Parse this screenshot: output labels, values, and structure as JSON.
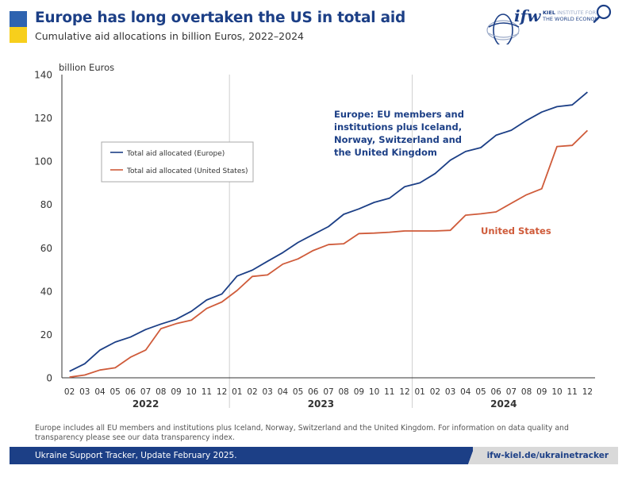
{
  "header": {
    "title": "Europe has long overtaken the US in total aid",
    "subtitle": "Cumulative aid allocations in billion Euros, 2022–2024"
  },
  "logo": {
    "mark": "ifw",
    "line1": "KIEL INSTITUTE FOR",
    "line2": "THE WORLD ECONOMY"
  },
  "search_icon": "search-icon",
  "footnote": "Europe includes all EU members and institutions plus Iceland, Norway, Switzerland and the United Kingdom. For information on data quality and transparency please see our data transparency index.",
  "footer": {
    "left": "Ukraine Support Tracker, Update February 2025.",
    "right": "ifw-kiel.de/ukrainetracker"
  },
  "colors": {
    "europe": "#1c3f86",
    "us": "#cf5b3a",
    "brand_blue": "#1c3f86",
    "flag_blue": "#2e63b0",
    "flag_yellow": "#f7cf1c"
  },
  "chart_data": {
    "type": "line",
    "title": "Europe has long overtaken the US in total aid",
    "subtitle": "Cumulative aid allocations in billion Euros, 2022–2024",
    "ylabel": "billion Euros",
    "ylim": [
      0,
      140
    ],
    "yticks": [
      0,
      20,
      40,
      60,
      80,
      100,
      120,
      140
    ],
    "grid": false,
    "legend_position": "upper-left",
    "x_labels": [
      "02",
      "03",
      "04",
      "05",
      "06",
      "07",
      "08",
      "09",
      "10",
      "11",
      "12",
      "01",
      "02",
      "03",
      "04",
      "05",
      "06",
      "07",
      "08",
      "09",
      "10",
      "11",
      "12",
      "01",
      "02",
      "03",
      "04",
      "05",
      "06",
      "07",
      "08",
      "09",
      "10",
      "11",
      "12"
    ],
    "year_groups": [
      {
        "label": "2022",
        "count": 11
      },
      {
        "label": "2023",
        "count": 12
      },
      {
        "label": "2024",
        "count": 12
      }
    ],
    "series": [
      {
        "name": "Total aid allocated (Europe)",
        "values": [
          3,
          6.5,
          12.8,
          16.5,
          18.8,
          22.3,
          24.8,
          27,
          30.7,
          35.9,
          38.7,
          47,
          49.7,
          53.8,
          57.8,
          62.5,
          66.2,
          69.8,
          75.5,
          78,
          81,
          82.9,
          88.2,
          90,
          94.3,
          100.5,
          104.5,
          106.3,
          112,
          114.3,
          118.8,
          122.7,
          125.2,
          126,
          131.9
        ]
      },
      {
        "name": "Total aid allocated (United States)",
        "values": [
          0.3,
          1.3,
          3.6,
          4.6,
          9.5,
          12.8,
          22.7,
          25,
          26.6,
          32,
          35,
          40.3,
          46.8,
          47.5,
          52.5,
          54.9,
          58.8,
          61.5,
          61.9,
          66.6,
          66.8,
          67.2,
          67.8,
          67.8,
          67.8,
          68.1,
          75.1,
          75.7,
          76.6,
          80.6,
          84.5,
          87.3,
          106.8,
          107.3,
          114.2
        ]
      }
    ],
    "annotations": [
      {
        "text": "Europe: EU members and institutions plus Iceland, Norway, Switzerland and the United Kingdom",
        "series": "Europe"
      },
      {
        "text": "United States",
        "series": "United States"
      }
    ]
  }
}
